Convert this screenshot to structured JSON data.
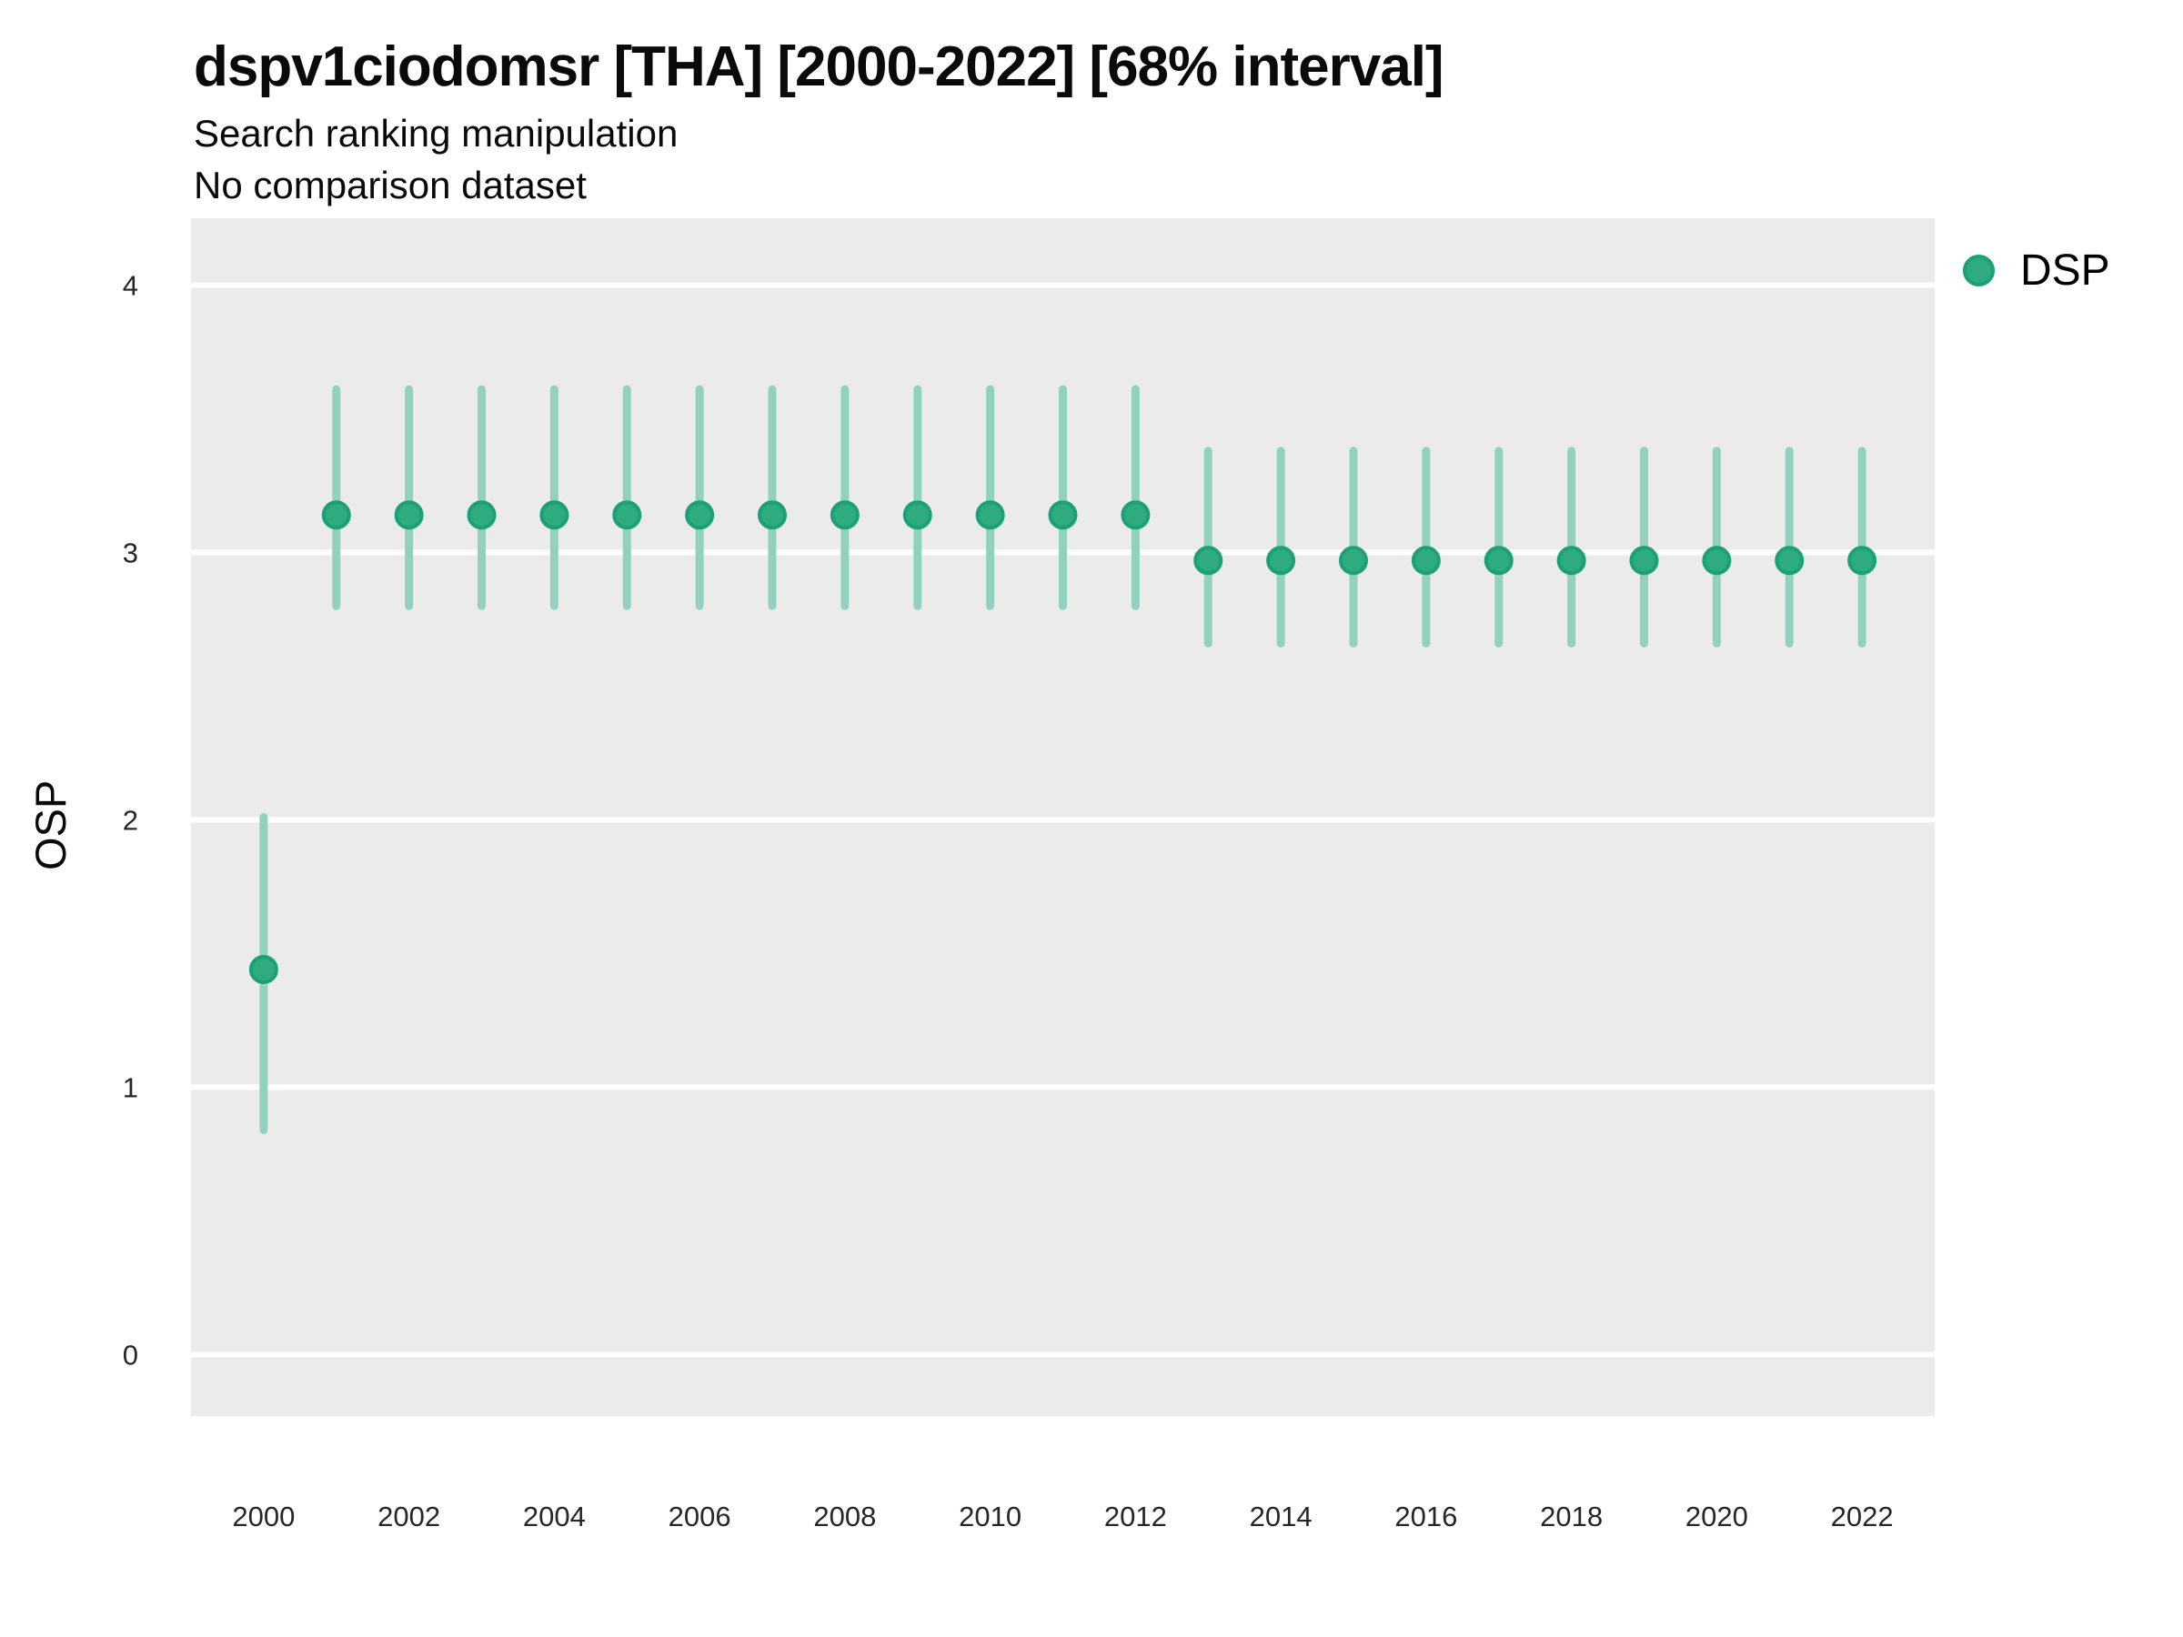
{
  "header": {
    "title": "dspv1ciodomsr [THA] [2000-2022] [68% interval]",
    "subtitle_line1": "Search ranking manipulation",
    "subtitle_line2": "No comparison dataset"
  },
  "legend": {
    "label": "DSP"
  },
  "chart_data": {
    "type": "pointrange",
    "title": "dspv1ciodomsr [THA] [2000-2022] [68% interval]",
    "subtitle": [
      "Search ranking manipulation",
      "No comparison dataset"
    ],
    "xlabel": "",
    "ylabel": "OSP",
    "x_range": [
      1999,
      2023
    ],
    "y_range": [
      -0.23,
      4.25
    ],
    "x_ticks": [
      2000,
      2002,
      2004,
      2006,
      2008,
      2010,
      2012,
      2014,
      2016,
      2018,
      2020,
      2022
    ],
    "y_ticks": [
      0,
      1,
      2,
      3,
      4
    ],
    "grid": "major-horizontal-only",
    "legend_position": "right-top-outside",
    "interval_level": "68%",
    "series": [
      {
        "name": "DSP",
        "years": [
          2000,
          2001,
          2002,
          2003,
          2004,
          2005,
          2006,
          2007,
          2008,
          2009,
          2010,
          2011,
          2012,
          2013,
          2014,
          2015,
          2016,
          2017,
          2018,
          2019,
          2020,
          2021,
          2022
        ],
        "estimate": [
          1.44,
          3.14,
          3.14,
          3.14,
          3.14,
          3.14,
          3.14,
          3.14,
          3.14,
          3.14,
          3.14,
          3.14,
          3.14,
          2.97,
          2.97,
          2.97,
          2.97,
          2.97,
          2.97,
          2.97,
          2.97,
          2.97,
          2.97
        ],
        "lower_68": [
          0.84,
          2.8,
          2.8,
          2.8,
          2.8,
          2.8,
          2.8,
          2.8,
          2.8,
          2.8,
          2.8,
          2.8,
          2.8,
          2.66,
          2.66,
          2.66,
          2.66,
          2.66,
          2.66,
          2.66,
          2.66,
          2.66,
          2.66
        ],
        "upper_68": [
          2.01,
          3.61,
          3.61,
          3.61,
          3.61,
          3.61,
          3.61,
          3.61,
          3.61,
          3.61,
          3.61,
          3.61,
          3.61,
          3.38,
          3.38,
          3.38,
          3.38,
          3.38,
          3.38,
          3.38,
          3.38,
          3.38,
          3.38
        ]
      }
    ],
    "colors": {
      "point": "#2EAC80",
      "point_outline": "#1BA173",
      "interval": "#91D2BE",
      "panel_background": "#EBEBEB",
      "gridline": "#FFFFFF",
      "tick_label": "#262626",
      "text": "#0A0A0A"
    }
  }
}
